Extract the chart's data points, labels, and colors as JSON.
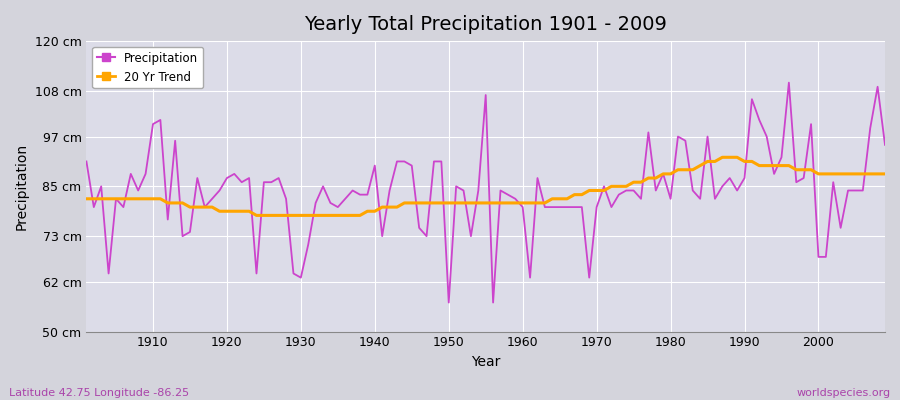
{
  "title": "Yearly Total Precipitation 1901 - 2009",
  "xlabel": "Year",
  "ylabel": "Precipitation",
  "bottom_left_label": "Latitude 42.75 Longitude -86.25",
  "bottom_right_label": "worldspecies.org",
  "precipitation_color": "#CC44CC",
  "trend_color": "#FFA500",
  "fig_background_color": "#D4D4DC",
  "plot_background_color": "#DCDCE8",
  "ylim": [
    50,
    120
  ],
  "ytick_labels": [
    "50 cm",
    "62 cm",
    "73 cm",
    "85 cm",
    "97 cm",
    "108 cm",
    "120 cm"
  ],
  "ytick_values": [
    50,
    62,
    73,
    85,
    97,
    108,
    120
  ],
  "years": [
    1901,
    1902,
    1903,
    1904,
    1905,
    1906,
    1907,
    1908,
    1909,
    1910,
    1911,
    1912,
    1913,
    1914,
    1915,
    1916,
    1917,
    1918,
    1919,
    1920,
    1921,
    1922,
    1923,
    1924,
    1925,
    1926,
    1927,
    1928,
    1929,
    1930,
    1931,
    1932,
    1933,
    1934,
    1935,
    1936,
    1937,
    1938,
    1939,
    1940,
    1941,
    1942,
    1943,
    1944,
    1945,
    1946,
    1947,
    1948,
    1949,
    1950,
    1951,
    1952,
    1953,
    1954,
    1955,
    1956,
    1957,
    1958,
    1959,
    1960,
    1961,
    1962,
    1963,
    1964,
    1965,
    1966,
    1967,
    1968,
    1969,
    1970,
    1971,
    1972,
    1973,
    1974,
    1975,
    1976,
    1977,
    1978,
    1979,
    1980,
    1981,
    1982,
    1983,
    1984,
    1985,
    1986,
    1987,
    1988,
    1989,
    1990,
    1991,
    1992,
    1993,
    1994,
    1995,
    1996,
    1997,
    1998,
    1999,
    2000,
    2001,
    2002,
    2003,
    2004,
    2005,
    2006,
    2007,
    2008,
    2009
  ],
  "precipitation": [
    91,
    80,
    85,
    64,
    82,
    80,
    88,
    84,
    88,
    100,
    101,
    77,
    96,
    73,
    74,
    87,
    80,
    82,
    84,
    87,
    88,
    86,
    87,
    64,
    86,
    86,
    87,
    82,
    64,
    63,
    71,
    81,
    85,
    81,
    80,
    82,
    84,
    83,
    83,
    90,
    73,
    84,
    91,
    91,
    90,
    75,
    73,
    91,
    91,
    57,
    85,
    84,
    73,
    84,
    107,
    57,
    84,
    83,
    82,
    80,
    63,
    87,
    80,
    80,
    80,
    80,
    80,
    80,
    63,
    80,
    85,
    80,
    83,
    84,
    84,
    82,
    98,
    84,
    88,
    82,
    97,
    96,
    84,
    82,
    97,
    82,
    85,
    87,
    84,
    87,
    106,
    101,
    97,
    88,
    92,
    110,
    86,
    87,
    100,
    68,
    68,
    86,
    75,
    84,
    84,
    84,
    99,
    109,
    95
  ],
  "trend": [
    82,
    82,
    82,
    82,
    82,
    82,
    82,
    82,
    82,
    82,
    82,
    81,
    81,
    81,
    80,
    80,
    80,
    80,
    79,
    79,
    79,
    79,
    79,
    78,
    78,
    78,
    78,
    78,
    78,
    78,
    78,
    78,
    78,
    78,
    78,
    78,
    78,
    78,
    79,
    79,
    80,
    80,
    80,
    81,
    81,
    81,
    81,
    81,
    81,
    81,
    81,
    81,
    81,
    81,
    81,
    81,
    81,
    81,
    81,
    81,
    81,
    81,
    81,
    82,
    82,
    82,
    83,
    83,
    84,
    84,
    84,
    85,
    85,
    85,
    86,
    86,
    87,
    87,
    88,
    88,
    89,
    89,
    89,
    90,
    91,
    91,
    92,
    92,
    92,
    91,
    91,
    90,
    90,
    90,
    90,
    90,
    89,
    89,
    89,
    88,
    88,
    88,
    88,
    88,
    88,
    88,
    88,
    88,
    88
  ]
}
